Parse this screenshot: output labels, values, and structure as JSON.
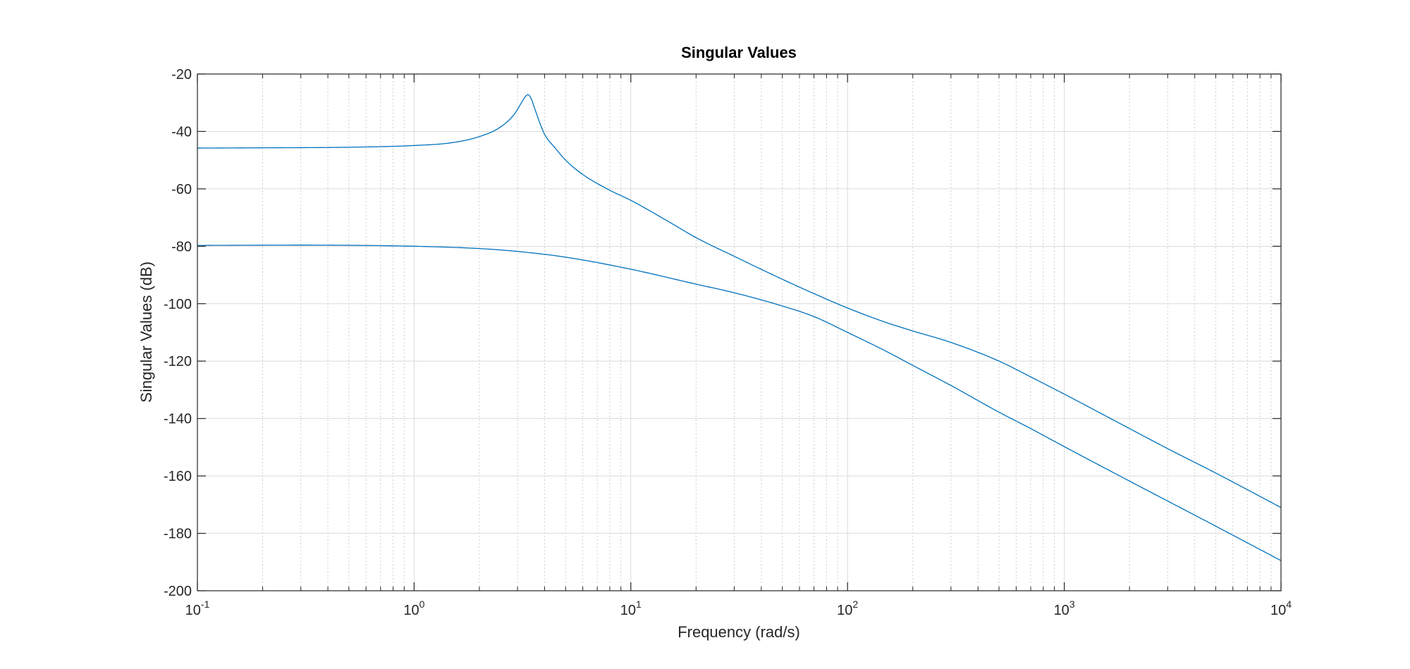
{
  "chart_data": {
    "type": "line",
    "title": "Singular Values",
    "xlabel": "Frequency (rad/s)",
    "ylabel": "Singular Values (dB)",
    "xscale": "log",
    "xlim": [
      0.1,
      10000
    ],
    "ylim": [
      -200,
      -20
    ],
    "x_ticks": [
      {
        "value": 0.1,
        "base": "10",
        "exp": "-1"
      },
      {
        "value": 1,
        "base": "10",
        "exp": "0"
      },
      {
        "value": 10,
        "base": "10",
        "exp": "1"
      },
      {
        "value": 100,
        "base": "10",
        "exp": "2"
      },
      {
        "value": 1000,
        "base": "10",
        "exp": "3"
      },
      {
        "value": 10000,
        "base": "10",
        "exp": "4"
      }
    ],
    "y_ticks": [
      -20,
      -40,
      -60,
      -80,
      -100,
      -120,
      -140,
      -160,
      -180,
      -200
    ],
    "y_tick_labels": [
      "-20",
      "-40",
      "-60",
      "-80",
      "-100",
      "-120",
      "-140",
      "-160",
      "-180",
      "-200"
    ],
    "grid": true,
    "minor_grid": true,
    "line_color": "#0072BD",
    "series": [
      {
        "x": [
          0.1,
          0.2,
          0.5,
          1,
          1.5,
          2,
          2.5,
          2.9,
          3.1,
          3.25,
          3.35,
          3.45,
          3.6,
          3.8,
          4,
          4.5,
          5,
          6,
          8,
          10,
          15,
          20,
          30,
          50,
          70,
          100,
          150,
          200,
          300,
          500,
          700,
          1000,
          2000,
          3000,
          5000,
          10000
        ],
        "y": [
          -45.8,
          -45.7,
          -45.5,
          -44.9,
          -43.9,
          -41.8,
          -38.5,
          -34,
          -30.5,
          -28,
          -27.2,
          -28.2,
          -32,
          -37,
          -41,
          -46,
          -50,
          -55,
          -60.5,
          -64,
          -71.5,
          -77,
          -83.5,
          -91.5,
          -96.5,
          -101.5,
          -106.5,
          -109.5,
          -113.5,
          -120,
          -125.5,
          -131.5,
          -143.5,
          -150.5,
          -159,
          -171
        ]
      },
      {
        "x": [
          0.1,
          0.3,
          1,
          2,
          3,
          5,
          10,
          20,
          30,
          50,
          70,
          100,
          150,
          200,
          300,
          500,
          700,
          1000,
          2000,
          5000,
          10000
        ],
        "y": [
          -79.7,
          -79.6,
          -80,
          -80.8,
          -81.8,
          -83.8,
          -88,
          -93.2,
          -96.2,
          -100.8,
          -104.5,
          -110,
          -116.5,
          -121.5,
          -128.5,
          -137.8,
          -143.5,
          -149.8,
          -161.8,
          -177.5,
          -189.5
        ]
      }
    ]
  }
}
